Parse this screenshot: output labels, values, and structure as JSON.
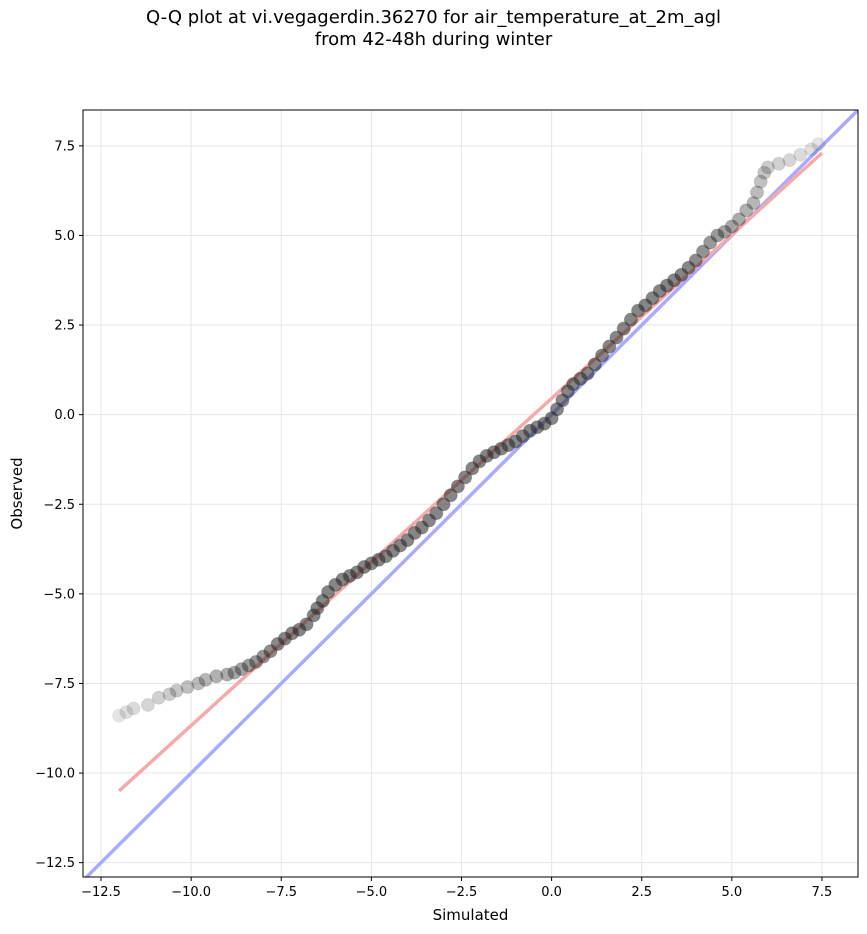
{
  "chart_data": {
    "type": "scatter",
    "title_line1": "Q-Q plot at vi.vegagerdin.36270 for air_temperature_at_2m_agl",
    "title_line2": "from 42-48h during winter",
    "xlabel": "Simulated",
    "ylabel": "Observed",
    "xlim": [
      -13.0,
      8.5
    ],
    "ylim": [
      -12.9,
      8.5
    ],
    "x_ticks": [
      -12.5,
      -10.0,
      -7.5,
      -5.0,
      -2.5,
      0.0,
      2.5,
      5.0,
      7.5
    ],
    "x_tick_labels": [
      "−12.5",
      "−10.0",
      "−7.5",
      "−5.0",
      "−2.5",
      "0.0",
      "2.5",
      "5.0",
      "7.5"
    ],
    "y_ticks": [
      -12.5,
      -10.0,
      -7.5,
      -5.0,
      -2.5,
      0.0,
      2.5,
      5.0,
      7.5
    ],
    "y_tick_labels": [
      "−12.5",
      "−10.0",
      "−7.5",
      "−5.0",
      "−2.5",
      "0.0",
      "2.5",
      "5.0",
      "7.5"
    ],
    "grid": true,
    "reference_line": {
      "x": [
        -13.0,
        8.5
      ],
      "y": [
        -13.0,
        8.5
      ],
      "color": "#aaaaff"
    },
    "fit_line": {
      "x": [
        -12.0,
        7.5
      ],
      "y": [
        -10.5,
        7.3
      ],
      "color": "#f4aaaa"
    },
    "points": [
      [
        -12.0,
        -8.4
      ],
      [
        -11.8,
        -8.3
      ],
      [
        -11.6,
        -8.2
      ],
      [
        -11.2,
        -8.1
      ],
      [
        -10.9,
        -7.9
      ],
      [
        -10.6,
        -7.8
      ],
      [
        -10.4,
        -7.7
      ],
      [
        -10.1,
        -7.6
      ],
      [
        -9.8,
        -7.5
      ],
      [
        -9.6,
        -7.4
      ],
      [
        -9.3,
        -7.3
      ],
      [
        -9.0,
        -7.25
      ],
      [
        -8.8,
        -7.2
      ],
      [
        -8.6,
        -7.1
      ],
      [
        -8.4,
        -7.0
      ],
      [
        -8.2,
        -6.9
      ],
      [
        -8.0,
        -6.75
      ],
      [
        -7.8,
        -6.6
      ],
      [
        -7.6,
        -6.4
      ],
      [
        -7.4,
        -6.25
      ],
      [
        -7.2,
        -6.1
      ],
      [
        -7.0,
        -6.0
      ],
      [
        -6.8,
        -5.85
      ],
      [
        -6.6,
        -5.6
      ],
      [
        -6.5,
        -5.4
      ],
      [
        -6.35,
        -5.2
      ],
      [
        -6.2,
        -4.95
      ],
      [
        -6.0,
        -4.75
      ],
      [
        -5.8,
        -4.6
      ],
      [
        -5.6,
        -4.5
      ],
      [
        -5.4,
        -4.4
      ],
      [
        -5.2,
        -4.25
      ],
      [
        -5.0,
        -4.15
      ],
      [
        -4.8,
        -4.05
      ],
      [
        -4.6,
        -3.95
      ],
      [
        -4.4,
        -3.8
      ],
      [
        -4.2,
        -3.65
      ],
      [
        -4.0,
        -3.5
      ],
      [
        -3.8,
        -3.3
      ],
      [
        -3.6,
        -3.15
      ],
      [
        -3.4,
        -2.95
      ],
      [
        -3.2,
        -2.75
      ],
      [
        -3.0,
        -2.5
      ],
      [
        -2.8,
        -2.25
      ],
      [
        -2.6,
        -2.0
      ],
      [
        -2.4,
        -1.75
      ],
      [
        -2.2,
        -1.5
      ],
      [
        -2.0,
        -1.3
      ],
      [
        -1.8,
        -1.15
      ],
      [
        -1.6,
        -1.05
      ],
      [
        -1.4,
        -0.95
      ],
      [
        -1.2,
        -0.85
      ],
      [
        -1.0,
        -0.75
      ],
      [
        -0.8,
        -0.6
      ],
      [
        -0.6,
        -0.45
      ],
      [
        -0.4,
        -0.35
      ],
      [
        -0.2,
        -0.25
      ],
      [
        0.0,
        -0.1
      ],
      [
        0.15,
        0.15
      ],
      [
        0.3,
        0.4
      ],
      [
        0.45,
        0.65
      ],
      [
        0.6,
        0.85
      ],
      [
        0.8,
        1.0
      ],
      [
        1.0,
        1.15
      ],
      [
        1.2,
        1.4
      ],
      [
        1.4,
        1.65
      ],
      [
        1.6,
        1.9
      ],
      [
        1.8,
        2.15
      ],
      [
        2.0,
        2.4
      ],
      [
        2.2,
        2.65
      ],
      [
        2.4,
        2.9
      ],
      [
        2.6,
        3.05
      ],
      [
        2.8,
        3.25
      ],
      [
        3.0,
        3.45
      ],
      [
        3.2,
        3.6
      ],
      [
        3.4,
        3.75
      ],
      [
        3.6,
        3.9
      ],
      [
        3.8,
        4.1
      ],
      [
        4.0,
        4.3
      ],
      [
        4.2,
        4.55
      ],
      [
        4.4,
        4.8
      ],
      [
        4.6,
        5.0
      ],
      [
        4.8,
        5.1
      ],
      [
        5.0,
        5.25
      ],
      [
        5.2,
        5.45
      ],
      [
        5.4,
        5.7
      ],
      [
        5.6,
        5.9
      ],
      [
        5.7,
        6.2
      ],
      [
        5.8,
        6.5
      ],
      [
        5.9,
        6.75
      ],
      [
        6.0,
        6.9
      ],
      [
        6.3,
        7.0
      ],
      [
        6.6,
        7.1
      ],
      [
        6.9,
        7.25
      ],
      [
        7.2,
        7.4
      ],
      [
        7.4,
        7.55
      ]
    ]
  }
}
